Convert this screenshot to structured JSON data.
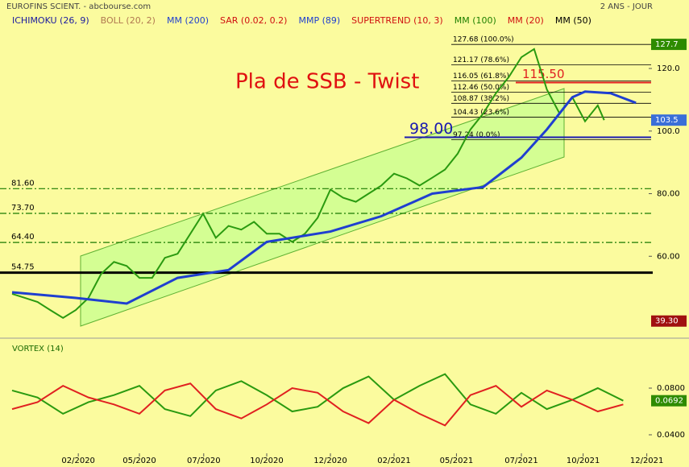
{
  "header": {
    "source": "EUROFINS SCIENT. - abcbourse.com",
    "period": "2 ANS - JOUR",
    "indicators": [
      {
        "name": "ICHIMOKU (26, 9)",
        "color": "#1a1aa0"
      },
      {
        "name": "BOLL (20, 2)",
        "color": "#b07850"
      },
      {
        "name": "MM (200)",
        "color": "#1f3fd0"
      },
      {
        "name": "SAR (0.02, 0.2)",
        "color": "#d01010"
      },
      {
        "name": "MMP (89)",
        "color": "#1f3fd0"
      },
      {
        "name": "SUPERTREND (10, 3)",
        "color": "#d01010"
      },
      {
        "name": "MM (100)",
        "color": "#208000"
      },
      {
        "name": "MM (20)",
        "color": "#d01010"
      },
      {
        "name": "MM (50)",
        "color": "#000000"
      }
    ]
  },
  "chart_data": [
    {
      "type": "line",
      "title": "Pla de SSB - Twist",
      "xlim": [
        0,
        100
      ],
      "xticks": [
        {
          "value": 10.4,
          "label": "02/2020"
        },
        {
          "value": 20,
          "label": "05/2020"
        },
        {
          "value": 30.1,
          "label": "07/2020"
        },
        {
          "value": 40,
          "label": "10/2020"
        },
        {
          "value": 50,
          "label": "12/2020"
        },
        {
          "value": 60,
          "label": "02/2021"
        },
        {
          "value": 69.8,
          "label": "05/2021"
        },
        {
          "value": 80,
          "label": "07/2021"
        },
        {
          "value": 89.7,
          "label": "10/2021"
        },
        {
          "value": 99.7,
          "label": "12/2021"
        }
      ],
      "ylim": [
        36.4,
        130.3
      ],
      "yticks": [
        {
          "value": 60,
          "label": "60.00"
        },
        {
          "value": 80,
          "label": "80.00"
        },
        {
          "value": 100,
          "label": "100.0"
        },
        {
          "value": 120,
          "label": "120.0"
        }
      ],
      "series": [
        {
          "color": "#2a9a10",
          "x": [
            0,
            2,
            4,
            6,
            8,
            10,
            12,
            14,
            16,
            18,
            20,
            22,
            24,
            26,
            28,
            30,
            32,
            34,
            36,
            38,
            40,
            42,
            44,
            46,
            48,
            50,
            52,
            54,
            56,
            58,
            60,
            62,
            64,
            66,
            68,
            70,
            72,
            74,
            76,
            78,
            80,
            82,
            84,
            86,
            88,
            90,
            92,
            93
          ],
          "values": [
            48.0,
            46.7,
            45.4,
            42.8,
            40.3,
            42.8,
            46.7,
            54.4,
            58.2,
            56.9,
            53.1,
            53.1,
            59.5,
            60.8,
            67.2,
            73.6,
            65.9,
            69.7,
            68.5,
            71.0,
            67.2,
            67.2,
            64.6,
            67.2,
            72.3,
            81.3,
            78.7,
            77.4,
            80.0,
            82.6,
            86.4,
            84.9,
            82.6,
            85.1,
            87.7,
            92.8,
            100.5,
            105.6,
            112.1,
            117.2,
            123.6,
            126.2,
            113.3,
            105.6,
            110.8,
            103.1,
            108.2,
            103.5
          ]
        },
        {
          "color": "#1f3fd0",
          "x": [
            0,
            10,
            18,
            26,
            34,
            40,
            50,
            58,
            66,
            74,
            80,
            84,
            88,
            90,
            94,
            98
          ],
          "values": [
            48.5,
            46.7,
            44.9,
            53.1,
            55.6,
            64.6,
            67.9,
            72.8,
            80.0,
            82.1,
            91.5,
            100.5,
            110.8,
            112.6,
            112.1,
            109.0
          ]
        }
      ],
      "levels": [
        {
          "value": 81.6,
          "label": "81.60"
        },
        {
          "value": 73.7,
          "label": "73.70"
        },
        {
          "value": 64.4,
          "label": "64.40"
        },
        {
          "value": 54.75,
          "label": "54.75"
        }
      ],
      "fib_levels": [
        {
          "value": 127.68,
          "label": "127.68 (100.0%)"
        },
        {
          "value": 121.17,
          "label": "121.17 (78.6%)"
        },
        {
          "value": 116.05,
          "label": "116.05 (61.8%)"
        },
        {
          "value": 112.46,
          "label": "112.46 (50.0%)"
        },
        {
          "value": 108.87,
          "label": "108.87 (38.2%)"
        },
        {
          "value": 104.43,
          "label": "104.43 (23.6%)"
        },
        {
          "value": 97.24,
          "label": "97.24 (0.0%)"
        }
      ],
      "annotations": [
        {
          "text": "98.00",
          "value": 98,
          "color": "#1a1ab0"
        },
        {
          "text": "115.50",
          "value": 115.5,
          "color": "#e02020"
        }
      ],
      "price_tags": [
        {
          "value": 127.7,
          "label": "127.7",
          "color": "#2e8b00"
        },
        {
          "value": 103.5,
          "label": "103.5",
          "color": "#3a6fd8"
        },
        {
          "value": 39.3,
          "label": "39.30",
          "color": "#a01010"
        }
      ]
    },
    {
      "type": "line",
      "title": "VORTEX (14)",
      "xlim": [
        0,
        100
      ],
      "ylim": [
        0.0262,
        0.1021
      ],
      "yticks": [
        {
          "value": 0.04,
          "label": "0.0400"
        },
        {
          "value": 0.08,
          "label": "0.0800"
        }
      ],
      "series": [
        {
          "color": "#2a9a10",
          "x": [
            0,
            4,
            8,
            12,
            16,
            20,
            24,
            28,
            32,
            36,
            40,
            44,
            48,
            52,
            56,
            60,
            64,
            68,
            72,
            76,
            80,
            84,
            88,
            92,
            96
          ],
          "values": [
            0.078,
            0.072,
            0.058,
            0.068,
            0.074,
            0.082,
            0.062,
            0.056,
            0.078,
            0.086,
            0.074,
            0.06,
            0.064,
            0.08,
            0.09,
            0.07,
            0.082,
            0.092,
            0.066,
            0.058,
            0.076,
            0.062,
            0.07,
            0.08,
            0.0692
          ]
        },
        {
          "color": "#e02020",
          "x": [
            0,
            4,
            8,
            12,
            16,
            20,
            24,
            28,
            32,
            36,
            40,
            44,
            48,
            52,
            56,
            60,
            64,
            68,
            72,
            76,
            80,
            84,
            88,
            92,
            96
          ],
          "values": [
            0.062,
            0.068,
            0.082,
            0.072,
            0.066,
            0.058,
            0.078,
            0.084,
            0.062,
            0.054,
            0.066,
            0.08,
            0.076,
            0.06,
            0.05,
            0.07,
            0.058,
            0.048,
            0.074,
            0.082,
            0.064,
            0.078,
            0.07,
            0.06,
            0.066
          ]
        }
      ],
      "price_tags": [
        {
          "value": 0.0692,
          "label": "0.0692",
          "color": "#2e8b00"
        }
      ]
    }
  ]
}
